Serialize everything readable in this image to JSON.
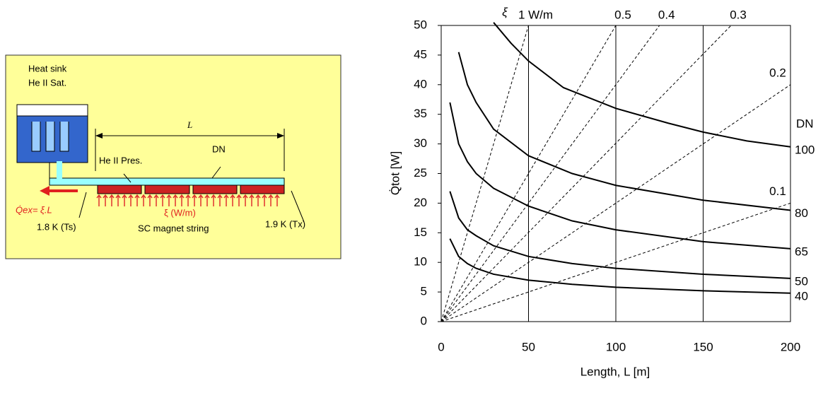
{
  "diagram": {
    "heat_sink": "Heat sink",
    "he_sat": "He II Sat.",
    "he_pres": "He II Pres.",
    "dn": "DN",
    "length": "L",
    "q_ex": "Q̇ex= ξ.L",
    "xi": "ξ (W/m)",
    "t_s": "1.8 K (Ts)",
    "string": "SC magnet string",
    "t_x": "1.9 K (Tx)"
  },
  "chart_data": {
    "type": "line",
    "x_label": "Length, L  [m]",
    "y_label": "Q̇tot [W]",
    "xlim": [
      0,
      200
    ],
    "ylim": [
      0,
      50
    ],
    "xticks": [
      0,
      50,
      100,
      150,
      200
    ],
    "yticks": [
      0,
      5,
      10,
      15,
      20,
      25,
      30,
      35,
      40,
      45,
      50
    ],
    "dn_label": "DN",
    "xi_label": "ξ",
    "color": "#000000",
    "series": [
      {
        "name": "100",
        "x": [
          30,
          40,
          50,
          70,
          100,
          130,
          150,
          175,
          200
        ],
        "values": [
          50.5,
          47,
          44,
          39.5,
          36,
          33.5,
          32,
          30.5,
          29.5
        ]
      },
      {
        "name": "80",
        "x": [
          10,
          15,
          20,
          30,
          50,
          75,
          100,
          150,
          200
        ],
        "values": [
          45.5,
          40,
          37,
          32.5,
          28,
          25,
          23,
          20.5,
          18.8
        ]
      },
      {
        "name": "65",
        "x": [
          5,
          10,
          15,
          20,
          30,
          50,
          75,
          100,
          150,
          200
        ],
        "values": [
          37,
          30,
          27,
          25,
          22.5,
          19.5,
          17,
          15.5,
          13.5,
          12.3
        ]
      },
      {
        "name": "50",
        "x": [
          5,
          10,
          15,
          20,
          30,
          50,
          75,
          100,
          150,
          200
        ],
        "values": [
          22,
          17.5,
          15.5,
          14.5,
          12.8,
          11,
          9.8,
          9,
          8,
          7.3
        ]
      },
      {
        "name": "40",
        "x": [
          5,
          10,
          15,
          20,
          30,
          50,
          75,
          100,
          150,
          200
        ],
        "values": [
          14,
          11,
          9.8,
          9,
          8,
          7,
          6.3,
          5.8,
          5.2,
          4.8
        ]
      }
    ],
    "dashed": [
      {
        "name": "1 W/m",
        "x": [
          0,
          50
        ],
        "values": [
          0,
          50
        ]
      },
      {
        "name": "0.5",
        "x": [
          0,
          100
        ],
        "values": [
          0,
          50
        ]
      },
      {
        "name": "0.4",
        "x": [
          0,
          125
        ],
        "values": [
          0,
          50
        ]
      },
      {
        "name": "0.3",
        "x": [
          0,
          166
        ],
        "values": [
          0,
          50
        ]
      },
      {
        "name": "0.2",
        "x": [
          0,
          200
        ],
        "values": [
          0,
          40
        ]
      },
      {
        "name": "0.1",
        "x": [
          0,
          200
        ],
        "values": [
          0,
          20
        ]
      }
    ]
  }
}
